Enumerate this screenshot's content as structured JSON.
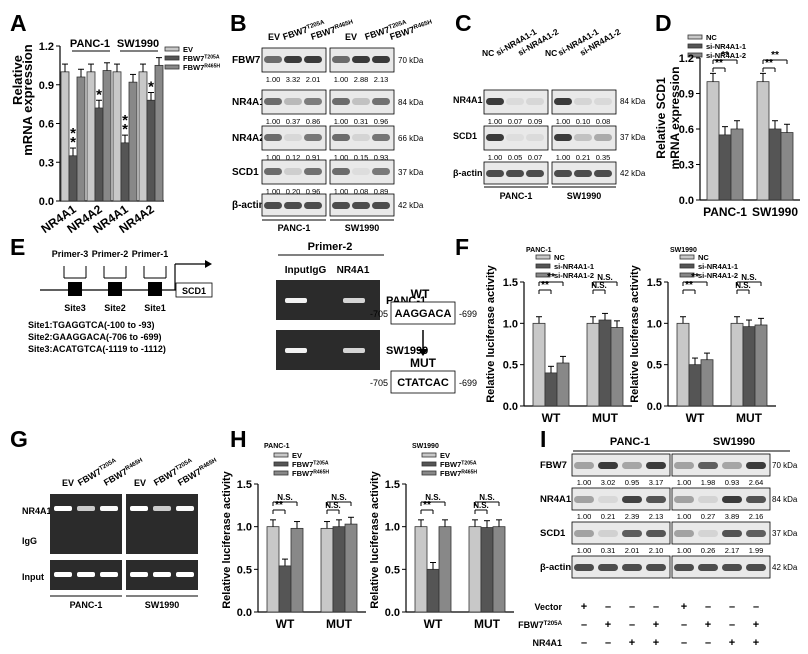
{
  "panel_labels": {
    "A": "A",
    "B": "B",
    "C": "C",
    "D": "D",
    "E": "E",
    "F": "F",
    "G": "G",
    "H": "H",
    "I": "I"
  },
  "colors": {
    "black": "#1a1a1a",
    "dark_gray": "#555555",
    "mid_gray": "#888888",
    "light_gray": "#c8c8c8",
    "white": "#ffffff"
  },
  "common": {
    "ylabel_rel_mrna": "Relative mRNA expression",
    "ylabel_rel_scd1": "Relative SCD1 mRNA expression",
    "ylabel_luc": "Relative luciferase activity",
    "panc1": "PANC-1",
    "sw1990": "SW1990",
    "beta_actin": "β-actin",
    "kda_70": "70 kDa",
    "kda_84": "84 kDa",
    "kda_66": "66 kDa",
    "kda_37": "37 kDa",
    "kda_42": "42 kDa",
    "sig2": "**",
    "sig1": "*",
    "ns": "N.S."
  },
  "panelA": {
    "legend": [
      "EV",
      "FBW7T205A",
      "FBW7R465H"
    ],
    "groups": [
      "PANC-1",
      "SW1990"
    ],
    "categories": [
      "NR4A1",
      "NR4A2",
      "NR4A1",
      "NR4A2"
    ],
    "chart_data": {
      "type": "bar",
      "categories": [
        "NR4A1",
        "NR4A2",
        "NR4A1",
        "NR4A2"
      ],
      "series": [
        {
          "name": "EV",
          "values": [
            1.0,
            1.0,
            1.0,
            1.0
          ]
        },
        {
          "name": "FBW7T205A",
          "values": [
            0.35,
            0.72,
            0.45,
            0.78
          ]
        },
        {
          "name": "FBW7R465H",
          "values": [
            0.96,
            1.01,
            0.92,
            1.05
          ]
        }
      ],
      "ylim": [
        0,
        1.2
      ],
      "yticks": [
        "0.0",
        "0.3",
        "0.6",
        "0.9",
        "1.2"
      ],
      "ylabel": "Relative mRNA expression"
    }
  },
  "panelB": {
    "lanes": [
      "EV",
      "FBW7T205A",
      "FBW7R465H",
      "EV",
      "FBW7T205A",
      "FBW7R465H"
    ],
    "rows": [
      {
        "name": "FBW7",
        "kda": "70 kDa",
        "vals": [
          "1.00",
          "3.32",
          "2.01",
          "1.00",
          "2.88",
          "2.13"
        ]
      },
      {
        "name": "NR4A1",
        "kda": "84 kDa",
        "vals": [
          "1.00",
          "0.37",
          "0.86",
          "1.00",
          "0.31",
          "0.96"
        ]
      },
      {
        "name": "NR4A2",
        "kda": "66 kDa",
        "vals": [
          "1.00",
          "0.12",
          "0.91",
          "1.00",
          "0.15",
          "0.93"
        ]
      },
      {
        "name": "SCD1",
        "kda": "37 kDa",
        "vals": [
          "1.00",
          "0.20",
          "0.96",
          "1.00",
          "0.08",
          "0.89"
        ]
      }
    ],
    "actin": "β-actin",
    "actin_kda": "42 kDa"
  },
  "panelC": {
    "lanes": [
      "NC",
      "si-NR4A1-1",
      "si-NR4A1-2",
      "NC",
      "si-NR4A1-1",
      "si-NR4A1-2"
    ],
    "rows": [
      {
        "name": "NR4A1",
        "kda": "84 kDa",
        "vals": [
          "1.00",
          "0.07",
          "0.09",
          "1.00",
          "0.10",
          "0.08"
        ]
      },
      {
        "name": "SCD1",
        "kda": "37 kDa",
        "vals": [
          "1.00",
          "0.05",
          "0.07",
          "1.00",
          "0.21",
          "0.35"
        ]
      }
    ],
    "actin": "β-actin",
    "actin_kda": "42 kDa"
  },
  "panelD": {
    "legend": [
      "NC",
      "si-NR4A1-1",
      "si-NR4A1-2"
    ],
    "chart_data": {
      "type": "bar",
      "categories": [
        "PANC-1",
        "SW1990"
      ],
      "series": [
        {
          "name": "NC",
          "values": [
            1.0,
            1.0
          ]
        },
        {
          "name": "si-NR4A1-1",
          "values": [
            0.55,
            0.6
          ]
        },
        {
          "name": "si-NR4A1-2",
          "values": [
            0.6,
            0.57
          ]
        }
      ],
      "ylim": [
        0,
        1.2
      ],
      "yticks": [
        "0.0",
        "0.3",
        "0.6",
        "0.9",
        "1.2"
      ],
      "ylabel": "Relative SCD1 mRNA expression"
    }
  },
  "panelE": {
    "primers": [
      "Primer-3",
      "Primer-2",
      "Primer-1"
    ],
    "sites": [
      "Site3",
      "Site2",
      "Site1"
    ],
    "gene": "SCD1",
    "site_text": [
      "Site1:TGAGGTCA(-100 to -93)",
      "Site2:GAAGGACA(-706 to -699)",
      "Site3:ACATGTCA(-1119 to -1112)"
    ],
    "gel_title": "Primer-2",
    "gel_lanes": [
      "Input",
      "IgG",
      "NR4A1"
    ],
    "gel_rows": [
      "PANC-1",
      "SW1990"
    ]
  },
  "panelF": {
    "wt": "WT",
    "mut": "MUT",
    "wt_seq": "AAGGACA",
    "mut_seq": "CTATCAC",
    "pos_left": "-705",
    "pos_right": "-699",
    "charts": [
      {
        "title": "PANC-1",
        "legend": [
          "NC",
          "si-NR4A1-1",
          "si-NR4A1-2"
        ],
        "chart_data": {
          "type": "bar",
          "categories": [
            "WT",
            "MUT"
          ],
          "series": [
            {
              "name": "NC",
              "values": [
                1.0,
                1.0
              ]
            },
            {
              "name": "si-NR4A1-1",
              "values": [
                0.4,
                1.04
              ]
            },
            {
              "name": "si-NR4A1-2",
              "values": [
                0.52,
                0.95
              ]
            }
          ],
          "ylim": [
            0,
            1.5
          ],
          "yticks": [
            "0.0",
            "0.5",
            "1.0",
            "1.5"
          ]
        }
      },
      {
        "title": "SW1990",
        "legend": [
          "NC",
          "si-NR4A1-1",
          "si-NR4A1-2"
        ],
        "chart_data": {
          "type": "bar",
          "categories": [
            "WT",
            "MUT"
          ],
          "series": [
            {
              "name": "NC",
              "values": [
                1.0,
                1.0
              ]
            },
            {
              "name": "si-NR4A1-1",
              "values": [
                0.5,
                0.96
              ]
            },
            {
              "name": "si-NR4A1-2",
              "values": [
                0.56,
                0.98
              ]
            }
          ],
          "ylim": [
            0,
            1.5
          ],
          "yticks": [
            "0.0",
            "0.5",
            "1.0",
            "1.5"
          ]
        }
      }
    ]
  },
  "panelG": {
    "lanes": [
      "EV",
      "FBW7T205A",
      "FBW7R465H",
      "EV",
      "FBW7T205A",
      "FBW7R465H"
    ],
    "rows": [
      "NR4A1",
      "IgG",
      "Input"
    ],
    "groups": [
      "PANC-1",
      "SW1990"
    ]
  },
  "panelH": {
    "charts": [
      {
        "title": "PANC-1",
        "legend": [
          "EV",
          "FBW7T205A",
          "FBW7R465H"
        ],
        "chart_data": {
          "type": "bar",
          "categories": [
            "WT",
            "MUT"
          ],
          "series": [
            {
              "name": "EV",
              "values": [
                1.0,
                0.98
              ]
            },
            {
              "name": "FBW7T205A",
              "values": [
                0.54,
                1.0
              ]
            },
            {
              "name": "FBW7R465H",
              "values": [
                0.98,
                1.03
              ]
            }
          ],
          "ylim": [
            0,
            1.5
          ],
          "yticks": [
            "0.0",
            "0.5",
            "1.0",
            "1.5"
          ]
        }
      },
      {
        "title": "SW1990",
        "legend": [
          "EV",
          "FBW7T205A",
          "FBW7R465H"
        ],
        "chart_data": {
          "type": "bar",
          "categories": [
            "WT",
            "MUT"
          ],
          "series": [
            {
              "name": "EV",
              "values": [
                1.0,
                1.0
              ]
            },
            {
              "name": "FBW7T205A",
              "values": [
                0.5,
                0.99
              ]
            },
            {
              "name": "FBW7R465H",
              "values": [
                1.0,
                1.0
              ]
            }
          ],
          "ylim": [
            0,
            1.5
          ],
          "yticks": [
            "0.0",
            "0.5",
            "1.0",
            "1.5"
          ]
        }
      }
    ]
  },
  "panelI": {
    "groups": [
      "PANC-1",
      "SW1990"
    ],
    "rows": [
      {
        "name": "FBW7",
        "kda": "70 kDa",
        "vals": [
          "1.00",
          "3.02",
          "0.95",
          "3.17",
          "1.00",
          "1.98",
          "0.93",
          "2.64"
        ]
      },
      {
        "name": "NR4A1",
        "kda": "84 kDa",
        "vals": [
          "1.00",
          "0.21",
          "2.39",
          "2.13",
          "1.00",
          "0.27",
          "3.89",
          "2.16"
        ]
      },
      {
        "name": "SCD1",
        "kda": "37 kDa",
        "vals": [
          "1.00",
          "0.31",
          "2.01",
          "2.10",
          "1.00",
          "0.26",
          "2.17",
          "1.99"
        ]
      }
    ],
    "actin": "β-actin",
    "actin_kda": "42 kDa",
    "treat_rows": [
      {
        "name": "Vector",
        "marks": [
          "+",
          "–",
          "–",
          "–",
          "+",
          "–",
          "–",
          "–"
        ]
      },
      {
        "name": "FBW7T205A",
        "marks": [
          "–",
          "+",
          "–",
          "+",
          "–",
          "+",
          "–",
          "+"
        ]
      },
      {
        "name": "NR4A1",
        "marks": [
          "–",
          "–",
          "+",
          "+",
          "–",
          "–",
          "+",
          "+"
        ]
      }
    ]
  }
}
